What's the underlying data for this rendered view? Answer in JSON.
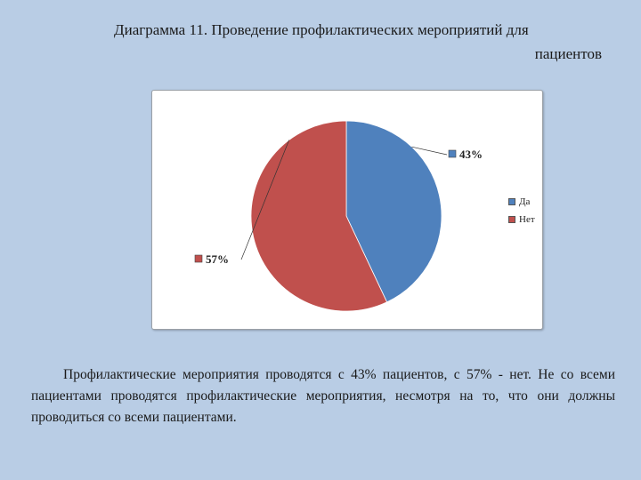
{
  "title": {
    "line1": "Диаграмма 11. Проведение профилактических мероприятий для",
    "line2": "пациентов"
  },
  "chart_data": {
    "type": "pie",
    "categories": [
      "Да",
      "Нет"
    ],
    "values": [
      43,
      57
    ],
    "data_labels": [
      "43%",
      "57%"
    ],
    "colors": [
      "#4f81bd",
      "#c0504d"
    ],
    "legend_position": "right",
    "start_angle_deg": 0,
    "direction": "clockwise"
  },
  "body_text": "Профилактические мероприятия проводятся с 43% пациентов, с 57% - нет. Не со всеми пациентами проводятся профилактические мероприятия, несмотря на то, что они должны проводиться со всеми пациентами."
}
